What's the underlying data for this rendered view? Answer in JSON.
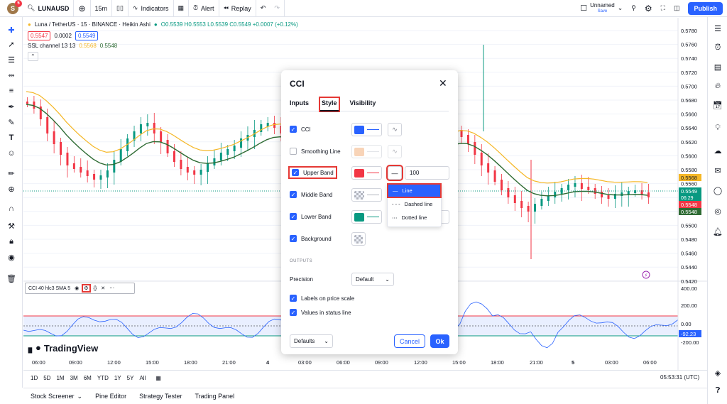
{
  "topbar": {
    "avatar_letter": "S",
    "avatar_badge": "5",
    "symbol": "LUNAUSD",
    "interval": "15m",
    "indicators_label": "Indicators",
    "alert_label": "Alert",
    "replay_label": "Replay",
    "layout_name": "Unnamed",
    "layout_status": "Save",
    "publish_label": "Publish"
  },
  "legend": {
    "title": "Luna / TetherUS · 15 · BINANCE · Heikin Ashi",
    "ohlc": "O0.5539 H0.5553 L0.5539 C0.5549 +0.0007 (+0.12%)",
    "bid": "0.5547",
    "spread": "0.0002",
    "ask": "0.5549",
    "ssl_label": "SSL channel 13 13",
    "ssl_v1": "0.5568",
    "ssl_v2": "0.5548",
    "collapse_glyph": "⌃"
  },
  "price_axis": {
    "labels": [
      "0.5780",
      "0.5760",
      "0.5740",
      "0.5720",
      "0.5700",
      "0.5680",
      "0.5660",
      "0.5640",
      "0.5620",
      "0.5600",
      "0.5580",
      "0.5560",
      "0.5540",
      "0.5520",
      "0.5500",
      "0.5480",
      "0.5460",
      "0.5440",
      "0.5420"
    ],
    "tag_ssl_upper": "0.5568",
    "tag_last": "0.5549",
    "tag_countdown": "06:29",
    "tag_ssl_lower": "0.5548",
    "tag_ssl_lower2": "0.5548"
  },
  "cci_axis": {
    "labels": [
      "400.00",
      "200.00",
      "0.00",
      "-200.00"
    ],
    "tag_value": "-92.23"
  },
  "indicator_bar": {
    "label": "CCI 40 hlc3 SMA 5"
  },
  "time_axis": [
    "06:00",
    "09:00",
    "12:00",
    "15:00",
    "18:00",
    "21:00",
    "4",
    "03:00",
    "06:00",
    "09:00",
    "12:00",
    "15:00",
    "18:00",
    "21:00",
    "5",
    "03:00",
    "06:00"
  ],
  "bottombar": {
    "ranges": [
      "1D",
      "5D",
      "1M",
      "3M",
      "6M",
      "YTD",
      "1Y",
      "5Y",
      "All"
    ],
    "clock": "05:53:31 (UTC)"
  },
  "footbar": {
    "tabs": [
      "Stock Screener",
      "Pine Editor",
      "Strategy Tester",
      "Trading Panel"
    ]
  },
  "watermark": "TradingView",
  "dialog": {
    "title": "CCI",
    "tabs": [
      "Inputs",
      "Style",
      "Visibility"
    ],
    "active_tab": "Style",
    "rows": [
      {
        "label": "CCI",
        "checked": true,
        "color": "#2962ff"
      },
      {
        "label": "Smoothing Line",
        "checked": false,
        "color": "#f5b98a"
      },
      {
        "label": "Upper Band",
        "checked": true,
        "color": "#f23645"
      },
      {
        "label": "Middle Band",
        "checked": true,
        "color": "#787b86"
      },
      {
        "label": "Lower Band",
        "checked": true,
        "color": "#089981"
      },
      {
        "label": "Background",
        "checked": true,
        "color": "#b2b5be"
      }
    ],
    "upper_band_value": "100",
    "outputs_heading": "OUTPUTS",
    "precision_label": "Precision",
    "precision_value": "Default",
    "labels_on_scale": "Labels on price scale",
    "values_in_status": "Values in status line",
    "defaults_label": "Defaults",
    "cancel_label": "Cancel",
    "ok_label": "Ok",
    "linestyle_menu": [
      "Line",
      "Dashed line",
      "Dotted line"
    ]
  },
  "colors": {
    "up": "#089981",
    "down": "#f23645",
    "ssl_upper": "#f5b726",
    "ssl_lower": "#2e6b33",
    "cci_line": "#2962ff",
    "accent": "#2962ff",
    "highlight": "#e53935"
  }
}
